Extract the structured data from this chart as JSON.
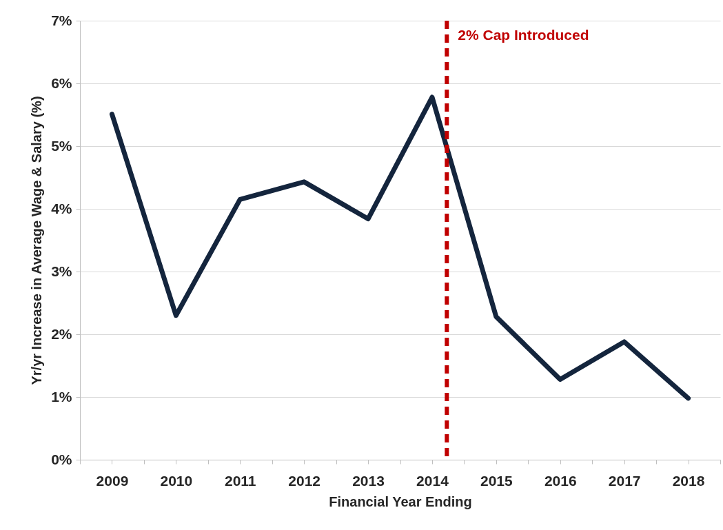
{
  "chart_data": {
    "type": "line",
    "xlabel": "Financial Year Ending",
    "ylabel": "Yr/yr Increase in Average Wage & Salary (%)",
    "x": [
      2009,
      2010,
      2011,
      2012,
      2013,
      2014,
      2015,
      2016,
      2017,
      2018
    ],
    "series": [
      {
        "color": "#14253d",
        "values": [
          5.51,
          2.3,
          4.15,
          4.43,
          3.84,
          5.78,
          2.28,
          1.28,
          1.88,
          0.98
        ]
      }
    ],
    "xlim": [
      2008.5,
      2018.5
    ],
    "xticks": [
      {
        "value": 2008.5,
        "label": null
      },
      2009,
      {
        "value": 2009.5,
        "label": null
      },
      2010,
      {
        "value": 2010.5,
        "label": null
      },
      2011,
      {
        "value": 2011.5,
        "label": null
      },
      2012,
      {
        "value": 2012.5,
        "label": null
      },
      2013,
      {
        "value": 2013.5,
        "label": null
      },
      2014,
      {
        "value": 2014.5,
        "label": null
      },
      2015,
      {
        "value": 2015.5,
        "label": null
      },
      2016,
      {
        "value": 2016.5,
        "label": null
      },
      2017,
      {
        "value": 2017.5,
        "label": null
      },
      2018,
      {
        "value": 2018.5,
        "label": null
      }
    ],
    "ylim": [
      0,
      7
    ],
    "yticks": [
      {
        "value": 0,
        "label": "0%"
      },
      {
        "value": 1,
        "label": "1%"
      },
      {
        "value": 2,
        "label": "2%"
      },
      {
        "value": 3,
        "label": "3%"
      },
      {
        "value": 4,
        "label": "4%"
      },
      {
        "value": 5,
        "label": "5%"
      },
      {
        "value": 6,
        "label": "6%"
      },
      {
        "value": 7,
        "label": "7%"
      }
    ],
    "grid": "y",
    "ref_lines": [
      {
        "axis": "x",
        "value": 2014.23,
        "label": "2% Cap Introduced",
        "color": "#c00000",
        "line_style": "dashed"
      }
    ]
  }
}
